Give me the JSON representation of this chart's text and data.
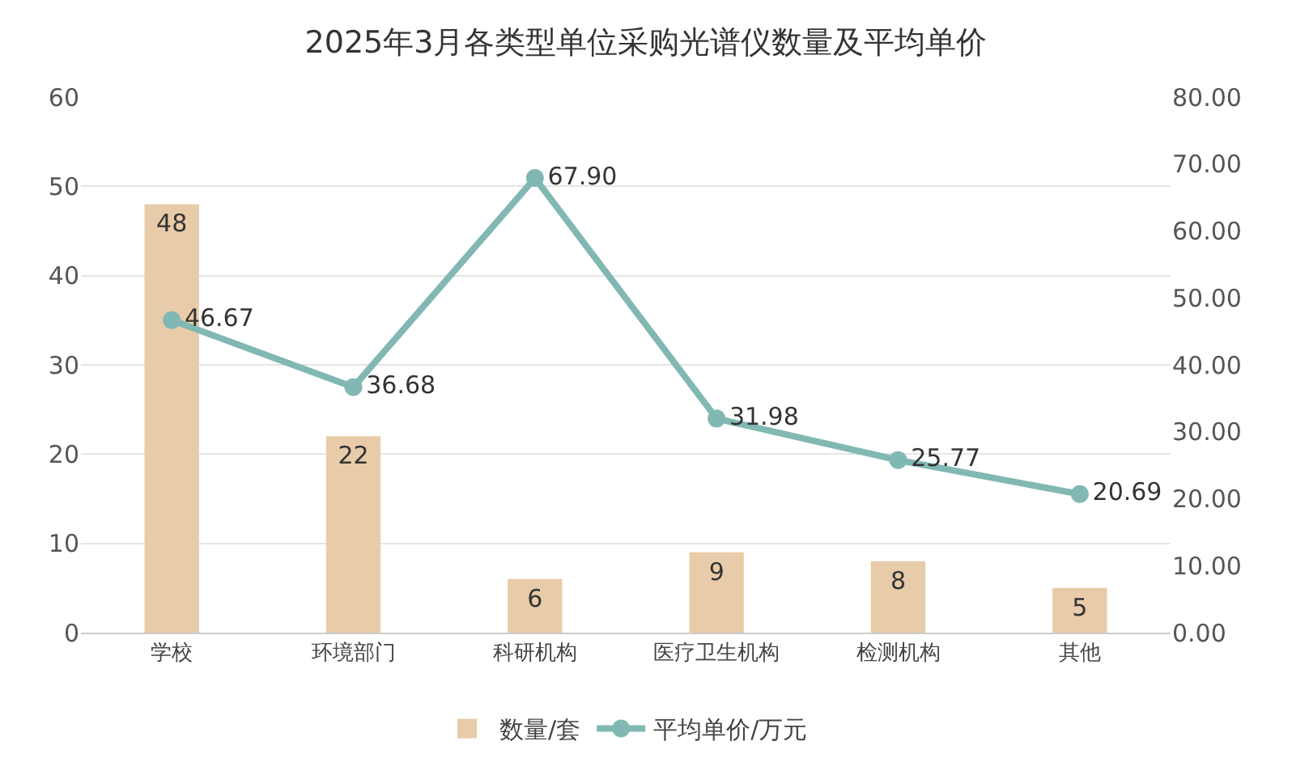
{
  "chart_data": {
    "type": "bar",
    "title": "2025年3月各类型单位采购光谱仪数量及平均单价",
    "categories": [
      "学校",
      "环境部门",
      "科研机构",
      "医疗卫生机构",
      "检测机构",
      "其他"
    ],
    "series": [
      {
        "name": "数量/套",
        "color": "#e8cba8",
        "values": [
          48,
          22,
          6,
          9,
          8,
          5
        ]
      },
      {
        "name": "平均单价/万元",
        "type": "line",
        "axis": "y2",
        "color": "#82b8b3",
        "marker": "circle",
        "values": [
          46.67,
          36.68,
          67.9,
          31.98,
          25.77,
          20.69
        ],
        "value_labels": [
          "46.67",
          "36.68",
          "67.90",
          "31.98",
          "25.77",
          "20.69"
        ]
      }
    ],
    "ylim": [
      0,
      60
    ],
    "yticks": [
      0,
      10,
      20,
      30,
      40,
      50,
      60
    ],
    "y2lim": [
      0,
      80
    ],
    "y2ticks": [
      {
        "value": 0,
        "label": "0.00"
      },
      {
        "value": 10,
        "label": "10.00"
      },
      {
        "value": 20,
        "label": "20.00"
      },
      {
        "value": 30,
        "label": "30.00"
      },
      {
        "value": 40,
        "label": "40.00"
      },
      {
        "value": 50,
        "label": "50.00"
      },
      {
        "value": 60,
        "label": "60.00"
      },
      {
        "value": 70,
        "label": "70.00"
      },
      {
        "value": 80,
        "label": "80.00"
      }
    ],
    "grid": "y",
    "legend": "bottom",
    "data_labels": true,
    "line_style": "solid"
  }
}
